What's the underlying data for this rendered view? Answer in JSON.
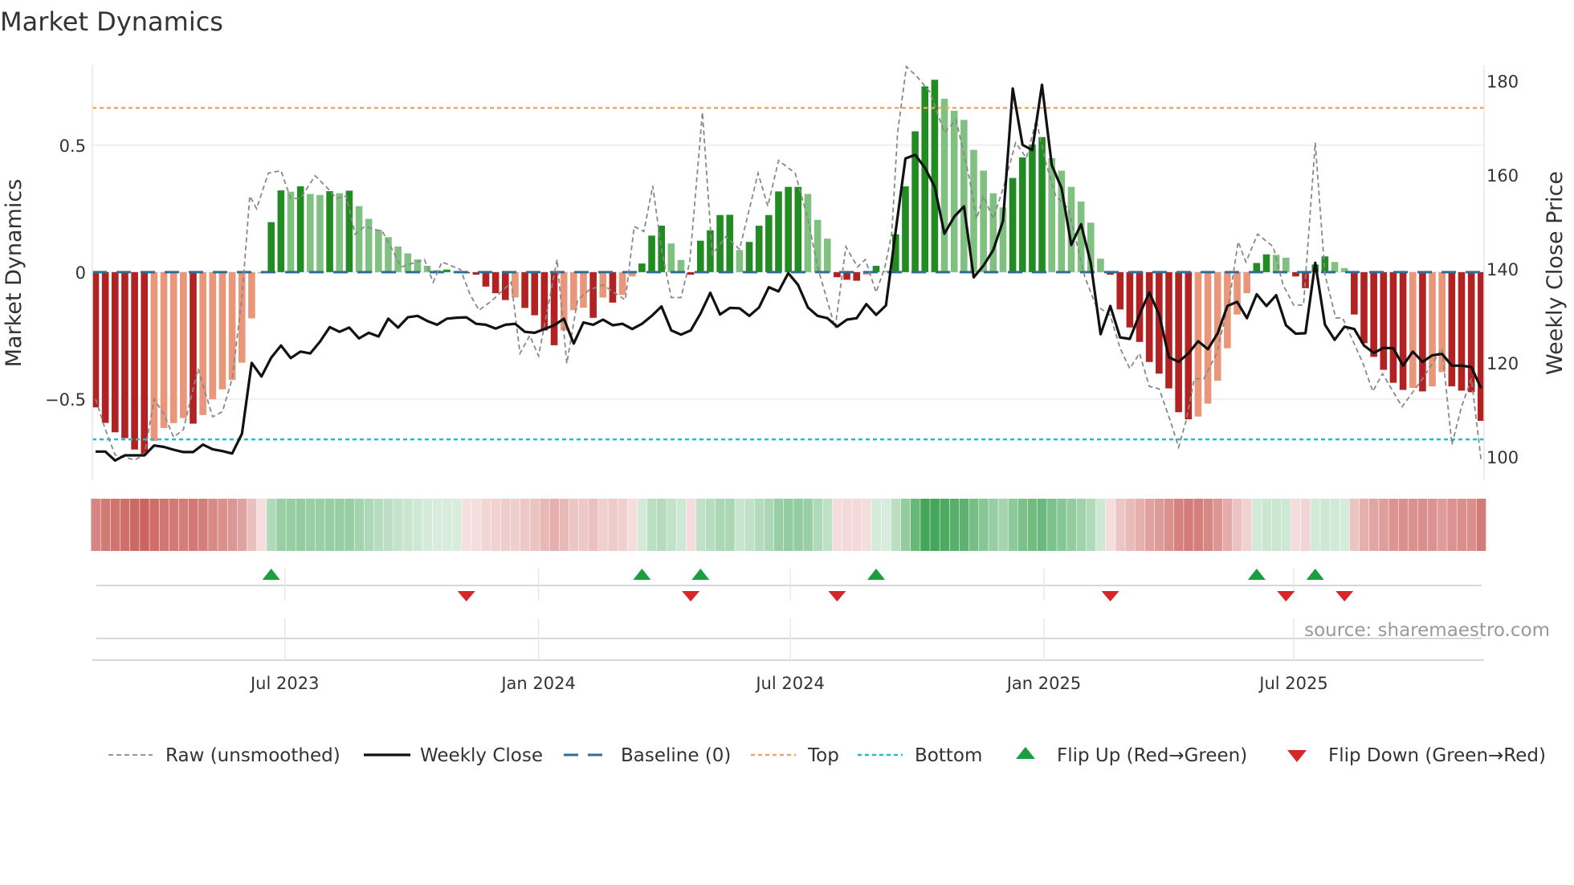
{
  "title": "Market Dynamics",
  "source": "source: sharemaestro.com",
  "chart_data": {
    "type": "bar",
    "title": "Market Dynamics",
    "frequency": "weekly",
    "ylabel": "Market Dynamics",
    "y2label": "Weekly Close Price",
    "ylim": [
      -0.82,
      0.816
    ],
    "y2lim": [
      95.0,
      183.4
    ],
    "yticks": [
      {
        "v": 0.5,
        "label": "0.5"
      },
      {
        "v": 0,
        "label": "0"
      },
      {
        "v": -0.5,
        "label": "−0.5"
      }
    ],
    "y2ticks": [
      {
        "v": 180,
        "label": "180"
      },
      {
        "v": 160,
        "label": "160"
      },
      {
        "v": 140,
        "label": "140"
      },
      {
        "v": 120,
        "label": "120"
      },
      {
        "v": 100,
        "label": "100"
      }
    ],
    "xticks": [
      {
        "week": 19.4,
        "label": "Jul 2023"
      },
      {
        "week": 45.4,
        "label": "Jan 2024"
      },
      {
        "week": 71.2,
        "label": "Jul 2024"
      },
      {
        "week": 97.2,
        "label": "Jan 2025"
      },
      {
        "week": 122.8,
        "label": "Jul 2025"
      }
    ],
    "top_level": 0.647,
    "bottom_level": -0.659,
    "baseline": 0,
    "momentum": [
      -0.533,
      -0.594,
      -0.631,
      -0.654,
      -0.699,
      -0.716,
      -0.665,
      -0.614,
      -0.595,
      -0.575,
      -0.597,
      -0.563,
      -0.501,
      -0.462,
      -0.425,
      -0.357,
      -0.182,
      -0.005,
      0.197,
      0.322,
      0.317,
      0.338,
      0.308,
      0.304,
      0.319,
      0.311,
      0.321,
      0.26,
      0.21,
      0.167,
      0.138,
      0.101,
      0.074,
      0.05,
      0.025,
      0.008,
      0.01,
      0.002,
      -0.001,
      -0.01,
      -0.057,
      -0.083,
      -0.11,
      -0.1,
      -0.141,
      -0.17,
      -0.23,
      -0.288,
      -0.23,
      -0.15,
      -0.14,
      -0.18,
      -0.1,
      -0.12,
      -0.09,
      -0.017,
      0.034,
      0.144,
      0.183,
      0.113,
      0.048,
      -0.01,
      0.124,
      0.165,
      0.225,
      0.226,
      0.087,
      0.119,
      0.183,
      0.225,
      0.318,
      0.336,
      0.336,
      0.308,
      0.206,
      0.132,
      -0.02,
      -0.03,
      -0.034,
      -0.01,
      0.025,
      0.005,
      0.149,
      0.338,
      0.555,
      0.732,
      0.758,
      0.683,
      0.636,
      0.6,
      0.482,
      0.4,
      0.311,
      0.255,
      0.371,
      0.452,
      0.503,
      0.532,
      0.449,
      0.4,
      0.336,
      0.278,
      0.195,
      0.053,
      -0.01,
      -0.147,
      -0.218,
      -0.275,
      -0.354,
      -0.4,
      -0.458,
      -0.552,
      -0.58,
      -0.569,
      -0.518,
      -0.428,
      -0.3,
      -0.167,
      -0.083,
      0.036,
      0.07,
      0.068,
      0.057,
      -0.017,
      -0.063,
      0.03,
      0.062,
      0.04,
      0.016,
      -0.167,
      -0.28,
      -0.334,
      -0.385,
      -0.436,
      -0.464,
      -0.456,
      -0.47,
      -0.45,
      -0.394,
      -0.45,
      -0.467,
      -0.473,
      -0.586
    ],
    "weekly_close": [
      101.1,
      101.1,
      99.2,
      100.3,
      100.3,
      100.3,
      102.4,
      102.1,
      101.5,
      101.0,
      101.0,
      102.6,
      101.6,
      101.2,
      100.7,
      104.9,
      120.0,
      117.1,
      121.1,
      123.7,
      121.0,
      122.4,
      122.0,
      124.5,
      127.6,
      126.6,
      127.5,
      125.2,
      126.4,
      125.6,
      129.4,
      127.5,
      129.7,
      130.0,
      128.9,
      128.1,
      129.4,
      129.6,
      129.7,
      128.3,
      128.1,
      127.3,
      128.1,
      128.3,
      126.6,
      126.4,
      127.2,
      128.0,
      129.4,
      124.1,
      128.6,
      128.1,
      129.2,
      128.0,
      128.3,
      127.2,
      128.3,
      130.0,
      132.0,
      126.9,
      126.0,
      126.9,
      130.5,
      134.9,
      130.3,
      131.7,
      131.6,
      130.0,
      131.8,
      136.1,
      135.2,
      139.1,
      136.6,
      131.8,
      130.0,
      129.5,
      127.7,
      129.2,
      129.5,
      132.5,
      130.2,
      132.2,
      148.0,
      163.5,
      164.3,
      161.5,
      157.5,
      147.5,
      151.1,
      153.3,
      138.2,
      140.7,
      144.0,
      150.2,
      178.4,
      166.4,
      165.3,
      179.2,
      162.1,
      157.2,
      145.1,
      149.5,
      141.2,
      126.1,
      132.1,
      125.4,
      125.1,
      130.3,
      135.0,
      130.3,
      121.2,
      120.2,
      122.0,
      124.6,
      122.9,
      126.3,
      132.1,
      133.0,
      129.5,
      134.6,
      132.1,
      134.4,
      128.0,
      126.2,
      126.3,
      141.3,
      128.1,
      124.9,
      127.7,
      127.2,
      123.7,
      122.1,
      123.2,
      123.1,
      119.4,
      122.4,
      120.2,
      121.6,
      121.9,
      119.4,
      119.4,
      119.1,
      114.6
    ],
    "raw_points": [
      [
        0,
        -0.5
      ],
      [
        1,
        -0.62
      ],
      [
        2,
        -0.72
      ],
      [
        3,
        -0.73
      ],
      [
        4,
        -0.74
      ],
      [
        5,
        -0.72
      ],
      [
        6,
        -0.5
      ],
      [
        7,
        -0.56
      ],
      [
        8,
        -0.65
      ],
      [
        9,
        -0.62
      ],
      [
        10.5,
        -0.38
      ],
      [
        12,
        -0.57
      ],
      [
        13,
        -0.55
      ],
      [
        14,
        -0.42
      ],
      [
        15,
        -0.1
      ],
      [
        15.8,
        0.3
      ],
      [
        16.5,
        0.25
      ],
      [
        17.7,
        0.39
      ],
      [
        19,
        0.4
      ],
      [
        20,
        0.29
      ],
      [
        21,
        0.29
      ],
      [
        22.5,
        0.38
      ],
      [
        23.8,
        0.33
      ],
      [
        24.7,
        0.29
      ],
      [
        25.7,
        0.3
      ],
      [
        26.6,
        0.15
      ],
      [
        27.6,
        0.18
      ],
      [
        29.4,
        0.16
      ],
      [
        30.4,
        0.09
      ],
      [
        31.3,
        0.02
      ],
      [
        33.7,
        0.05
      ],
      [
        34.6,
        -0.04
      ],
      [
        35.5,
        0.04
      ],
      [
        37.4,
        0.01
      ],
      [
        38.4,
        -0.09
      ],
      [
        39.3,
        -0.15
      ],
      [
        40.7,
        -0.11
      ],
      [
        42.6,
        -0.04
      ],
      [
        43.5,
        -0.32
      ],
      [
        44.5,
        -0.25
      ],
      [
        45.4,
        -0.33
      ],
      [
        47.3,
        0.05
      ],
      [
        48.3,
        -0.36
      ],
      [
        49.4,
        -0.11
      ],
      [
        50.6,
        -0.07
      ],
      [
        52,
        -0.05
      ],
      [
        54.3,
        -0.11
      ],
      [
        55.2,
        0.18
      ],
      [
        56.2,
        0.16
      ],
      [
        57.1,
        0.34
      ],
      [
        58,
        0.09
      ],
      [
        59,
        -0.1
      ],
      [
        60,
        -0.1
      ],
      [
        60.9,
        0.04
      ],
      [
        62.2,
        0.63
      ],
      [
        63.2,
        0.07
      ],
      [
        64.6,
        0.14
      ],
      [
        66,
        0.09
      ],
      [
        67.9,
        0.39
      ],
      [
        68.9,
        0.26
      ],
      [
        70,
        0.44
      ],
      [
        71.7,
        0.39
      ],
      [
        73,
        0.21
      ],
      [
        74,
        0.02
      ],
      [
        75.8,
        -0.22
      ],
      [
        76.9,
        0.1
      ],
      [
        78.1,
        0.02
      ],
      [
        78.9,
        0.05
      ],
      [
        80,
        -0.08
      ],
      [
        80.9,
        0.02
      ],
      [
        81.6,
        0.15
      ],
      [
        82.2,
        0.55
      ],
      [
        83.1,
        0.81
      ],
      [
        84.2,
        0.77
      ],
      [
        85.5,
        0.71
      ],
      [
        87,
        0.55
      ],
      [
        88.2,
        0.6
      ],
      [
        89.5,
        0.38
      ],
      [
        90.3,
        0.21
      ],
      [
        91,
        0.3
      ],
      [
        92,
        0.21
      ],
      [
        93.1,
        0.34
      ],
      [
        94.3,
        0.51
      ],
      [
        95.4,
        0.45
      ],
      [
        96.4,
        0.6
      ],
      [
        97.4,
        0.43
      ],
      [
        98.4,
        0.3
      ],
      [
        99.7,
        0.25
      ],
      [
        101.4,
        -0.02
      ],
      [
        102.5,
        -0.13
      ],
      [
        104,
        -0.17
      ],
      [
        105,
        -0.3
      ],
      [
        106,
        -0.38
      ],
      [
        107,
        -0.32
      ],
      [
        108,
        -0.45
      ],
      [
        109,
        -0.46
      ],
      [
        110.1,
        -0.58
      ],
      [
        111,
        -0.69
      ],
      [
        111.8,
        -0.58
      ],
      [
        112.6,
        -0.42
      ],
      [
        113.6,
        -0.42
      ],
      [
        114.9,
        -0.32
      ],
      [
        116.2,
        -0.11
      ],
      [
        117.1,
        0.12
      ],
      [
        117.9,
        0.04
      ],
      [
        119.1,
        0.15
      ],
      [
        120.7,
        0.1
      ],
      [
        121.7,
        -0.05
      ],
      [
        122.8,
        -0.13
      ],
      [
        123.8,
        -0.13
      ],
      [
        125,
        0.51
      ],
      [
        126,
        -0.01
      ],
      [
        127.1,
        -0.18
      ],
      [
        127.8,
        -0.18
      ],
      [
        129.9,
        -0.36
      ],
      [
        130.9,
        -0.47
      ],
      [
        131.9,
        -0.4
      ],
      [
        133.9,
        -0.53
      ],
      [
        136,
        -0.42
      ],
      [
        138,
        -0.3
      ],
      [
        139,
        -0.68
      ],
      [
        140,
        -0.53
      ],
      [
        141,
        -0.42
      ],
      [
        142,
        -0.74
      ]
    ],
    "flip_up_weeks": [
      18,
      56,
      62,
      80,
      119,
      125
    ],
    "flip_down_weeks": [
      38,
      61,
      76,
      104,
      122,
      128
    ],
    "colors": {
      "strong_negative": "#b22222",
      "weak_negative": "#e9967a",
      "strong_positive": "#228b22",
      "weak_positive": "#80c080",
      "raw": "#888888",
      "close": "#111111",
      "baseline": "#2c6e9b",
      "top": "#f0a860",
      "bottom": "#1fbfd0",
      "flip_up": "#1a9e3f",
      "flip_down": "#d62728"
    },
    "legend": [
      {
        "key": "raw",
        "label": "Raw (unsmoothed)"
      },
      {
        "key": "close",
        "label": "Weekly Close"
      },
      {
        "key": "baseline",
        "label": "Baseline (0)"
      },
      {
        "key": "top",
        "label": "Top"
      },
      {
        "key": "bottom",
        "label": "Bottom"
      },
      {
        "key": "flip_up",
        "label": "Flip Up (Red→Green)"
      },
      {
        "key": "flip_down",
        "label": "Flip Down (Green→Red)"
      }
    ]
  }
}
